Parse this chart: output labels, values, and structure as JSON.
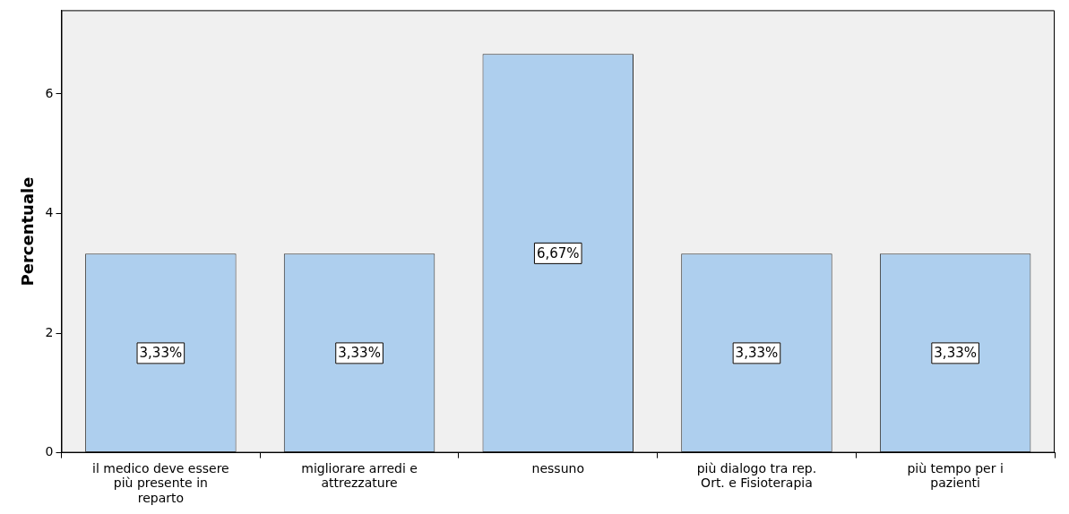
{
  "chart_data": {
    "type": "bar",
    "ylabel": "Percentuale",
    "categories": [
      "il medico deve essere più presente in reparto",
      "migliorare arredi e attrezzature",
      "nessuno",
      "più dialogo tra rep. Ort. e Fisioterapia",
      "più tempo per i pazienti"
    ],
    "values": [
      3.33,
      3.33,
      6.67,
      3.33,
      3.33
    ],
    "value_labels": [
      "3,33%",
      "3,33%",
      "6,67%",
      "3,33%",
      "3,33%"
    ],
    "color": "#aecfee",
    "ylim": [
      0,
      7.4
    ],
    "yticks": [
      0,
      2,
      4,
      6
    ],
    "grid": false,
    "legend": false
  }
}
